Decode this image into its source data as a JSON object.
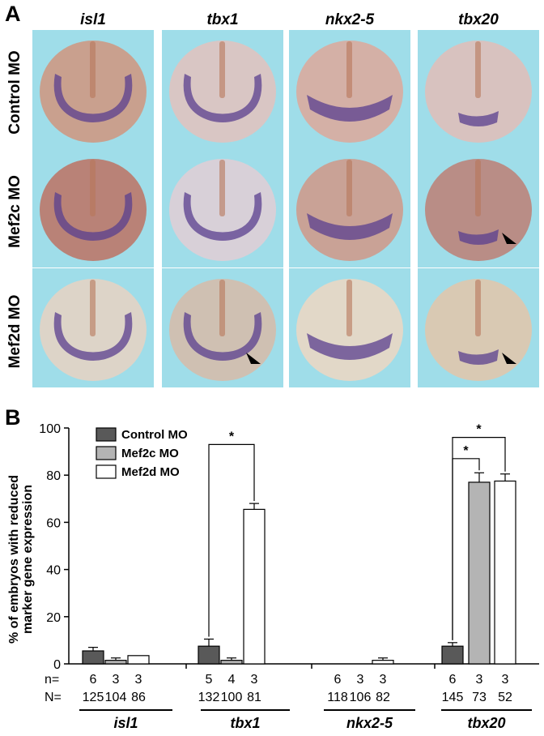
{
  "panel_a": {
    "letter": "A",
    "columns": [
      "isl1",
      "tbx1",
      "nkx2-5",
      "tbx20"
    ],
    "rows": [
      "Control MO",
      "Mef2c MO",
      "Mef2d MO"
    ],
    "background_color": "#9fdde9",
    "stain_color": "#5a3f8f",
    "arrowheads": [
      {
        "row": 1,
        "col": 3
      },
      {
        "row": 2,
        "col": 1
      },
      {
        "row": 2,
        "col": 3
      }
    ]
  },
  "panel_b": {
    "letter": "B",
    "n_label": "n=",
    "N_label": "N=",
    "significance_marker": "*"
  },
  "chart_data": {
    "type": "bar",
    "title": "",
    "ylabel_lines": [
      "% of embryos with reduced",
      "marker gene expression"
    ],
    "xlabel": "",
    "ylim": [
      0,
      100
    ],
    "yticks": [
      "0",
      "20",
      "40",
      "60",
      "80",
      "100"
    ],
    "legend_position": "top-left",
    "categories": [
      "isl1",
      "tbx1",
      "nkx2-5",
      "tbx20"
    ],
    "series": [
      {
        "name": "Control MO",
        "color": "#595959",
        "values": [
          5.5,
          7.5,
          0,
          7.5
        ],
        "errors": [
          1.5,
          3,
          0,
          1.5
        ],
        "n": [
          "6",
          "5",
          "6",
          "6"
        ],
        "N": [
          "125",
          "132",
          "118",
          "145"
        ]
      },
      {
        "name": "Mef2c MO",
        "color": "#b4b4b4",
        "values": [
          1.5,
          1.5,
          0,
          77
        ],
        "errors": [
          1,
          1,
          0,
          4
        ],
        "n": [
          "3",
          "4",
          "3",
          "3"
        ],
        "N": [
          "104",
          "100",
          "106",
          "73"
        ]
      },
      {
        "name": "Mef2d MO",
        "color": "#ffffff",
        "values": [
          3.5,
          65.5,
          1.5,
          77.5
        ],
        "errors": [
          0,
          2.5,
          1,
          3
        ],
        "n": [
          "3",
          "3",
          "3",
          "3"
        ],
        "N": [
          "86",
          "81",
          "82",
          "52"
        ]
      }
    ],
    "significance": [
      {
        "category": 1,
        "from": 0,
        "to": 2,
        "bracket_y": 93,
        "label": "*"
      },
      {
        "category": 3,
        "from": 0,
        "to": 1,
        "bracket_y": 87,
        "label": "*"
      },
      {
        "category": 3,
        "from": 0,
        "to": 2,
        "bracket_y": 96,
        "label": "*"
      }
    ]
  }
}
